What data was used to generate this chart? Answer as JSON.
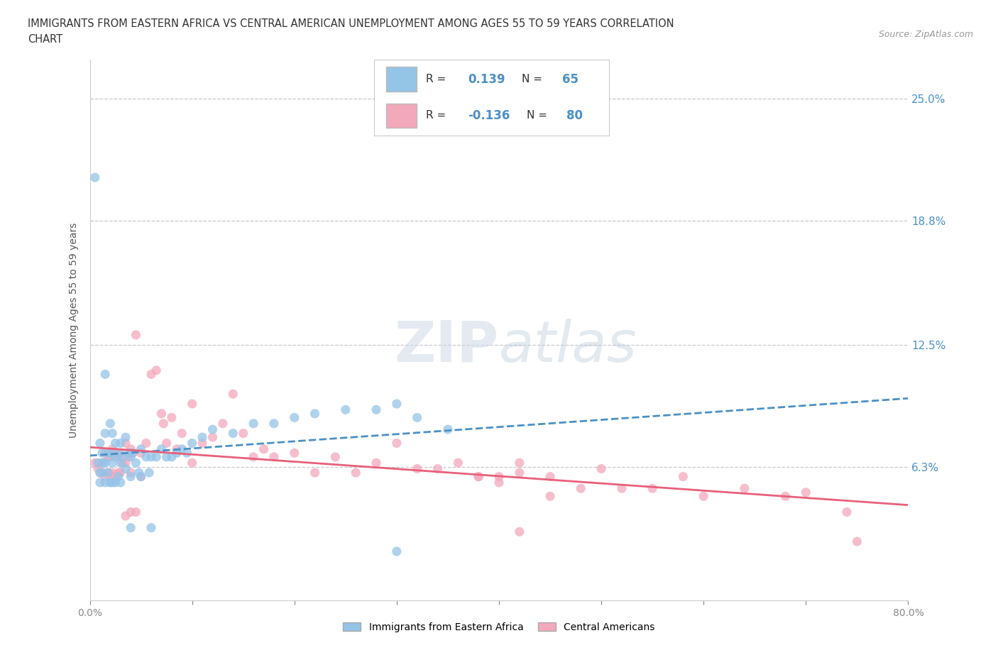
{
  "title_line1": "IMMIGRANTS FROM EASTERN AFRICA VS CENTRAL AMERICAN UNEMPLOYMENT AMONG AGES 55 TO 59 YEARS CORRELATION",
  "title_line2": "CHART",
  "source_text": "Source: ZipAtlas.com",
  "ylabel": "Unemployment Among Ages 55 to 59 years",
  "xlim": [
    0.0,
    0.8
  ],
  "ylim": [
    -0.005,
    0.27
  ],
  "ytick_vals": [
    0.063,
    0.125,
    0.188,
    0.25
  ],
  "ytick_labels": [
    "6.3%",
    "12.5%",
    "18.8%",
    "25.0%"
  ],
  "R_blue": 0.139,
  "N_blue": 65,
  "R_pink": -0.136,
  "N_pink": 80,
  "color_blue": "#94C4E8",
  "color_pink": "#F4A8BC",
  "line_blue": "#4A90C8",
  "line_pink": "#E8607A",
  "tick_color": "#4A90C8",
  "background_color": "#ffffff",
  "grid_color": "#c8c8d0",
  "blue_scatter_x": [
    0.005,
    0.008,
    0.01,
    0.01,
    0.01,
    0.012,
    0.012,
    0.013,
    0.015,
    0.015,
    0.015,
    0.015,
    0.018,
    0.018,
    0.02,
    0.02,
    0.02,
    0.022,
    0.022,
    0.022,
    0.025,
    0.025,
    0.025,
    0.028,
    0.028,
    0.03,
    0.03,
    0.03,
    0.032,
    0.035,
    0.035,
    0.038,
    0.04,
    0.04,
    0.042,
    0.045,
    0.048,
    0.05,
    0.05,
    0.055,
    0.058,
    0.06,
    0.065,
    0.07,
    0.075,
    0.08,
    0.085,
    0.09,
    0.095,
    0.1,
    0.11,
    0.12,
    0.14,
    0.16,
    0.18,
    0.2,
    0.22,
    0.25,
    0.28,
    0.3,
    0.32,
    0.35,
    0.04,
    0.06,
    0.3
  ],
  "blue_scatter_y": [
    0.21,
    0.065,
    0.06,
    0.075,
    0.055,
    0.07,
    0.06,
    0.065,
    0.11,
    0.08,
    0.065,
    0.055,
    0.07,
    0.06,
    0.085,
    0.07,
    0.055,
    0.08,
    0.065,
    0.055,
    0.075,
    0.068,
    0.055,
    0.07,
    0.058,
    0.075,
    0.065,
    0.055,
    0.068,
    0.078,
    0.062,
    0.07,
    0.068,
    0.058,
    0.07,
    0.065,
    0.06,
    0.072,
    0.058,
    0.068,
    0.06,
    0.068,
    0.068,
    0.072,
    0.068,
    0.068,
    0.07,
    0.072,
    0.07,
    0.075,
    0.078,
    0.082,
    0.08,
    0.085,
    0.085,
    0.088,
    0.09,
    0.092,
    0.092,
    0.095,
    0.088,
    0.082,
    0.032,
    0.032,
    0.02
  ],
  "pink_scatter_x": [
    0.005,
    0.008,
    0.01,
    0.012,
    0.013,
    0.015,
    0.015,
    0.018,
    0.018,
    0.02,
    0.02,
    0.022,
    0.022,
    0.025,
    0.025,
    0.028,
    0.028,
    0.03,
    0.03,
    0.032,
    0.035,
    0.035,
    0.038,
    0.04,
    0.04,
    0.042,
    0.045,
    0.05,
    0.05,
    0.055,
    0.06,
    0.065,
    0.07,
    0.072,
    0.075,
    0.08,
    0.085,
    0.09,
    0.1,
    0.1,
    0.11,
    0.12,
    0.13,
    0.14,
    0.15,
    0.16,
    0.17,
    0.18,
    0.2,
    0.22,
    0.24,
    0.26,
    0.28,
    0.3,
    0.32,
    0.34,
    0.36,
    0.38,
    0.4,
    0.42,
    0.45,
    0.48,
    0.5,
    0.52,
    0.55,
    0.58,
    0.6,
    0.64,
    0.68,
    0.7,
    0.74,
    0.38,
    0.4,
    0.42,
    0.45,
    0.035,
    0.04,
    0.045,
    0.42,
    0.75
  ],
  "pink_scatter_y": [
    0.065,
    0.062,
    0.06,
    0.065,
    0.06,
    0.07,
    0.058,
    0.068,
    0.06,
    0.068,
    0.058,
    0.072,
    0.06,
    0.07,
    0.058,
    0.068,
    0.06,
    0.07,
    0.06,
    0.065,
    0.075,
    0.065,
    0.068,
    0.072,
    0.06,
    0.07,
    0.13,
    0.07,
    0.058,
    0.075,
    0.11,
    0.112,
    0.09,
    0.085,
    0.075,
    0.088,
    0.072,
    0.08,
    0.095,
    0.065,
    0.075,
    0.078,
    0.085,
    0.1,
    0.08,
    0.068,
    0.072,
    0.068,
    0.07,
    0.06,
    0.068,
    0.06,
    0.065,
    0.075,
    0.062,
    0.062,
    0.065,
    0.058,
    0.058,
    0.065,
    0.058,
    0.052,
    0.062,
    0.052,
    0.052,
    0.058,
    0.048,
    0.052,
    0.048,
    0.05,
    0.04,
    0.058,
    0.055,
    0.06,
    0.048,
    0.038,
    0.04,
    0.04,
    0.03,
    0.025
  ]
}
